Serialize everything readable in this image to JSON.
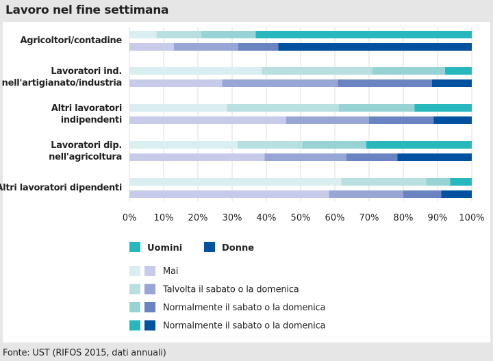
{
  "title": "Lavoro nel fine settimana",
  "footer": "Fonte: UST (RIFOS 2015, dati annuali)",
  "chart_data": {
    "type": "bar",
    "orientation": "horizontal",
    "stacked": true,
    "normalized": true,
    "categories": [
      "Agricoltori/contadine",
      "Lavoratori ind. nell'artigianato/industria",
      "Altri lavoratori indipendenti",
      "Lavoratori dip. nell'agricoltura",
      "Altri lavoratori dipendenti"
    ],
    "category_lines": [
      [
        "Agricoltori/contadine"
      ],
      [
        "Lavoratori ind.",
        "nell'artigianato/industria"
      ],
      [
        "Altri lavoratori",
        "indipendenti"
      ],
      [
        "Lavoratori dip.",
        "nell'agricoltura"
      ],
      [
        "Altri lavoratori dipendenti"
      ]
    ],
    "groups": [
      {
        "name": "Uomini",
        "color": "#26b8bd",
        "colors": [
          "#d9eef0",
          "#b8e0e1",
          "#97d3d5",
          "#26b8bd"
        ],
        "series": [
          {
            "name": "Mai",
            "values": [
              7.9,
              38.7,
              28.5,
              31.6,
              61.9
            ]
          },
          {
            "name": "Talvolta il sabato o la domenica",
            "values": [
              13.1,
              32.3,
              32.7,
              18.9,
              24.8
            ]
          },
          {
            "name": "Normalmente il sabato o la domenica",
            "values": [
              15.9,
              21.2,
              22.1,
              18.7,
              7.0
            ]
          },
          {
            "name": "Normalmente il sabato o la domenica",
            "values": [
              63.1,
              7.8,
              16.7,
              30.8,
              6.3
            ]
          }
        ]
      },
      {
        "name": "Donne",
        "color": "#0052a0",
        "colors": [
          "#c7cbe9",
          "#97a6d5",
          "#6a84c2",
          "#0052a0"
        ],
        "series": [
          {
            "name": "Mai",
            "values": [
              13.0,
              27.1,
              45.8,
              39.5,
              58.3
            ]
          },
          {
            "name": "Talvolta il sabato o la domenica",
            "values": [
              18.8,
              33.8,
              24.2,
              23.9,
              21.7
            ]
          },
          {
            "name": "Normalmente il sabato o la domenica",
            "values": [
              11.7,
              27.5,
              18.9,
              14.9,
              11.1
            ]
          },
          {
            "name": "Normalmente il sabato o la domenica",
            "values": [
              56.5,
              11.6,
              11.1,
              21.7,
              8.9
            ]
          }
        ]
      }
    ],
    "legend_labels": [
      "Mai",
      "Talvolta il sabato o la domenica",
      "Normalmente il sabato o la domenica",
      "Normalmente il sabato o la domenica"
    ],
    "xlim": [
      0,
      100
    ],
    "xticks": [
      "0%",
      "10%",
      "20%",
      "30%",
      "40%",
      "50%",
      "60%",
      "70%",
      "80%",
      "90%",
      "100%"
    ],
    "grid": true,
    "legend_position": "bottom"
  }
}
